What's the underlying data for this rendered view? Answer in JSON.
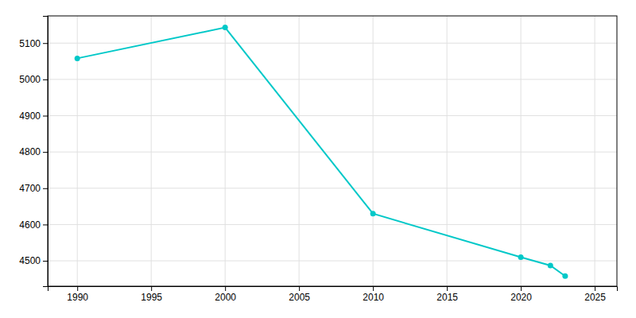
{
  "chart_data": {
    "type": "line",
    "x": [
      1990,
      2000,
      2010,
      2020,
      2022,
      2023
    ],
    "values": [
      5058,
      5143,
      4630,
      4510,
      4487,
      4458
    ],
    "color": "#00C8C8",
    "marker": "circle",
    "xlim": [
      1988,
      2026.5
    ],
    "ylim": [
      4430,
      5175
    ],
    "xticks": [
      1990,
      1995,
      2000,
      2005,
      2010,
      2015,
      2020,
      2025
    ],
    "yticks": [
      4500,
      4600,
      4700,
      4800,
      4900,
      5000,
      5100
    ],
    "grid": true
  }
}
